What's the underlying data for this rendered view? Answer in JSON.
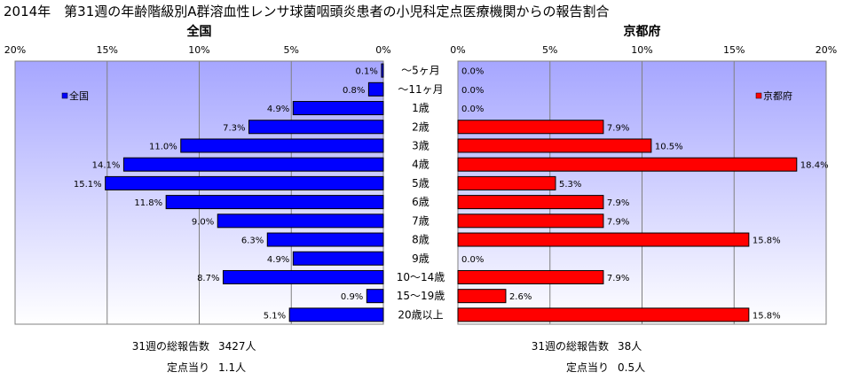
{
  "title": "2014年　第31週の年齢階級別A群溶血性レンサ球菌咽頭炎患者の小児科定点医療機関からの報告割合",
  "chart_data": {
    "type": "bar",
    "orientation": "horizontal",
    "layout": "back-to-back",
    "categories": [
      "～5ヶ月",
      "～11ヶ月",
      "1歳",
      "2歳",
      "3歳",
      "4歳",
      "5歳",
      "6歳",
      "7歳",
      "8歳",
      "9歳",
      "10～14歳",
      "15～19歳",
      "20歳以上"
    ],
    "panels": [
      {
        "title": "全国",
        "legend": "全国",
        "legend_position": "top-left",
        "color": "#0000ff",
        "direction": "left",
        "xlim": [
          0,
          20
        ],
        "ticks": [
          "20%",
          "15%",
          "10%",
          "5%",
          "0%"
        ],
        "tick_values": [
          20,
          15,
          10,
          5,
          0
        ],
        "values": [
          0.1,
          0.8,
          4.9,
          7.3,
          11.0,
          14.1,
          15.1,
          11.8,
          9.0,
          6.3,
          4.9,
          8.7,
          0.9,
          5.1
        ],
        "labels": [
          "0.1%",
          "0.8%",
          "4.9%",
          "7.3%",
          "11.0%",
          "14.1%",
          "15.1%",
          "11.8%",
          "9.0%",
          "6.3%",
          "4.9%",
          "8.7%",
          "0.9%",
          "5.1%"
        ],
        "footer": [
          {
            "label": "31週の総報告数",
            "value": "3427人"
          },
          {
            "label": "定点当り",
            "value": "1.1人"
          }
        ]
      },
      {
        "title": "京都府",
        "legend": "京都府",
        "legend_position": "top-right",
        "color": "#ff0000",
        "direction": "right",
        "xlim": [
          0,
          20
        ],
        "ticks": [
          "0%",
          "5%",
          "10%",
          "15%",
          "20%"
        ],
        "tick_values": [
          0,
          5,
          10,
          15,
          20
        ],
        "values": [
          0.0,
          0.0,
          0.0,
          7.9,
          10.5,
          18.4,
          5.3,
          7.9,
          7.9,
          15.8,
          0.0,
          7.9,
          2.6,
          15.8
        ],
        "labels": [
          "0.0%",
          "0.0%",
          "0.0%",
          "7.9%",
          "10.5%",
          "18.4%",
          "5.3%",
          "7.9%",
          "7.9%",
          "15.8%",
          "0.0%",
          "7.9%",
          "2.6%",
          "15.8%"
        ],
        "footer": [
          {
            "label": "31週の総報告数",
            "value": "38人"
          },
          {
            "label": "定点当り",
            "value": "0.5人"
          }
        ]
      }
    ],
    "grid": true,
    "colors": {
      "plot_bg_top": "#a6a6ff",
      "plot_bg_bottom": "#ffffff",
      "grid": "#808080",
      "bar_edge": "#000000"
    }
  }
}
